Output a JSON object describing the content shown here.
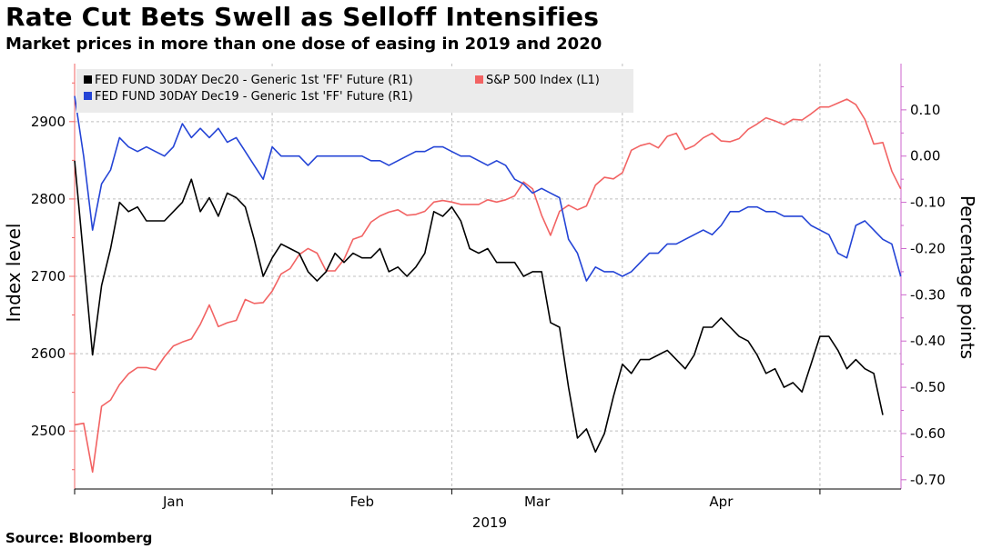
{
  "title": "Rate Cut Bets Swell as Selloff Intensifies",
  "subtitle": "Market prices in more than one dose of easing in 2019 and 2020",
  "source": "Source: Bloomberg",
  "colors": {
    "sp500": "#f26363",
    "ff_dec20": "#000000",
    "ff_dec19": "#2444d6",
    "right_axis": "#cc66cc",
    "left_axis": "#f26363",
    "grid": "#bfbfbf",
    "legend_bg": "#ebebeb"
  },
  "chart_data": {
    "type": "line",
    "ylabel_left": "Index level",
    "ylabel_right": "Percentage points",
    "xlabel": "2019",
    "ylim_left": [
      2425,
      2975
    ],
    "ylim_right": [
      -0.72,
      0.2
    ],
    "left_ticks": [
      "2500",
      "2600",
      "2700",
      "2800",
      "2900"
    ],
    "right_ticks": [
      "0.10",
      "0.00",
      "-0.10",
      "-0.20",
      "-0.30",
      "-0.40",
      "-0.50",
      "-0.60",
      "-0.70"
    ],
    "month_labels": [
      "Jan",
      "Feb",
      "Mar",
      "Apr"
    ],
    "grid": true,
    "legend_position": "top-left",
    "series": [
      {
        "name": "FED FUND 30DAY Dec20 - Generic 1st 'FF' Future (R1)",
        "axis": "right",
        "values": [
          -0.01,
          -0.22,
          -0.43,
          -0.28,
          -0.2,
          -0.1,
          -0.12,
          -0.11,
          -0.14,
          -0.14,
          -0.14,
          -0.12,
          -0.1,
          -0.05,
          -0.12,
          -0.09,
          -0.13,
          -0.08,
          -0.09,
          -0.11,
          -0.18,
          -0.26,
          -0.22,
          -0.19,
          -0.2,
          -0.21,
          -0.25,
          -0.27,
          -0.25,
          -0.21,
          -0.23,
          -0.21,
          -0.22,
          -0.22,
          -0.2,
          -0.25,
          -0.24,
          -0.26,
          -0.24,
          -0.21,
          -0.12,
          -0.13,
          -0.11,
          -0.14,
          -0.2,
          -0.21,
          -0.2,
          -0.23,
          -0.23,
          -0.23,
          -0.26,
          -0.25,
          -0.25,
          -0.36,
          -0.37,
          -0.5,
          -0.61,
          -0.59,
          -0.64,
          -0.6,
          -0.52,
          -0.45,
          -0.47,
          -0.44,
          -0.44,
          -0.43,
          -0.42,
          -0.44,
          -0.46,
          -0.43,
          -0.37,
          -0.37,
          -0.35,
          -0.37,
          -0.39,
          -0.4,
          -0.43,
          -0.47,
          -0.46,
          -0.5,
          -0.49,
          -0.51,
          -0.45,
          -0.39,
          -0.39,
          -0.42,
          -0.46,
          -0.44,
          -0.46,
          -0.47,
          -0.56
        ]
      },
      {
        "name": "S&P 500 Index  (L1)",
        "axis": "left",
        "values": [
          2508,
          2510,
          2447,
          2532,
          2540,
          2560,
          2574,
          2582,
          2582,
          2579,
          2596,
          2610,
          2615,
          2619,
          2638,
          2663,
          2635,
          2640,
          2643,
          2670,
          2665,
          2666,
          2681,
          2703,
          2710,
          2728,
          2736,
          2730,
          2707,
          2707,
          2722,
          2748,
          2752,
          2770,
          2778,
          2783,
          2786,
          2779,
          2780,
          2784,
          2796,
          2798,
          2796,
          2793,
          2793,
          2793,
          2799,
          2796,
          2799,
          2804,
          2822,
          2813,
          2779,
          2753,
          2784,
          2792,
          2786,
          2791,
          2818,
          2828,
          2826,
          2834,
          2863,
          2869,
          2872,
          2866,
          2881,
          2885,
          2864,
          2869,
          2879,
          2885,
          2875,
          2874,
          2878,
          2890,
          2897,
          2905,
          2901,
          2896,
          2903,
          2902,
          2910,
          2919,
          2919,
          2924,
          2929,
          2922,
          2903,
          2871,
          2873,
          2836,
          2813
        ]
      },
      {
        "name": "FED FUND 30DAY Dec19 - Generic 1st 'FF' Future (R1)",
        "axis": "right",
        "values": [
          0.13,
          0.0,
          -0.16,
          -0.06,
          -0.03,
          0.04,
          0.02,
          0.01,
          0.02,
          0.01,
          0.0,
          0.02,
          0.07,
          0.04,
          0.06,
          0.04,
          0.06,
          0.03,
          0.04,
          0.01,
          -0.02,
          -0.05,
          0.02,
          0.0,
          0.0,
          0.0,
          -0.02,
          0.0,
          0.0,
          0.0,
          0.0,
          0.0,
          0.0,
          -0.01,
          -0.01,
          -0.02,
          -0.01,
          0.0,
          0.01,
          0.01,
          0.02,
          0.02,
          0.01,
          0.0,
          0.0,
          -0.01,
          -0.02,
          -0.01,
          -0.02,
          -0.05,
          -0.06,
          -0.08,
          -0.07,
          -0.08,
          -0.09,
          -0.18,
          -0.21,
          -0.27,
          -0.24,
          -0.25,
          -0.25,
          -0.26,
          -0.25,
          -0.23,
          -0.21,
          -0.21,
          -0.19,
          -0.19,
          -0.18,
          -0.17,
          -0.16,
          -0.17,
          -0.15,
          -0.12,
          -0.12,
          -0.11,
          -0.11,
          -0.12,
          -0.12,
          -0.13,
          -0.13,
          -0.13,
          -0.15,
          -0.16,
          -0.17,
          -0.21,
          -0.22,
          -0.15,
          -0.14,
          -0.16,
          -0.18,
          -0.19,
          -0.26
        ]
      }
    ]
  }
}
